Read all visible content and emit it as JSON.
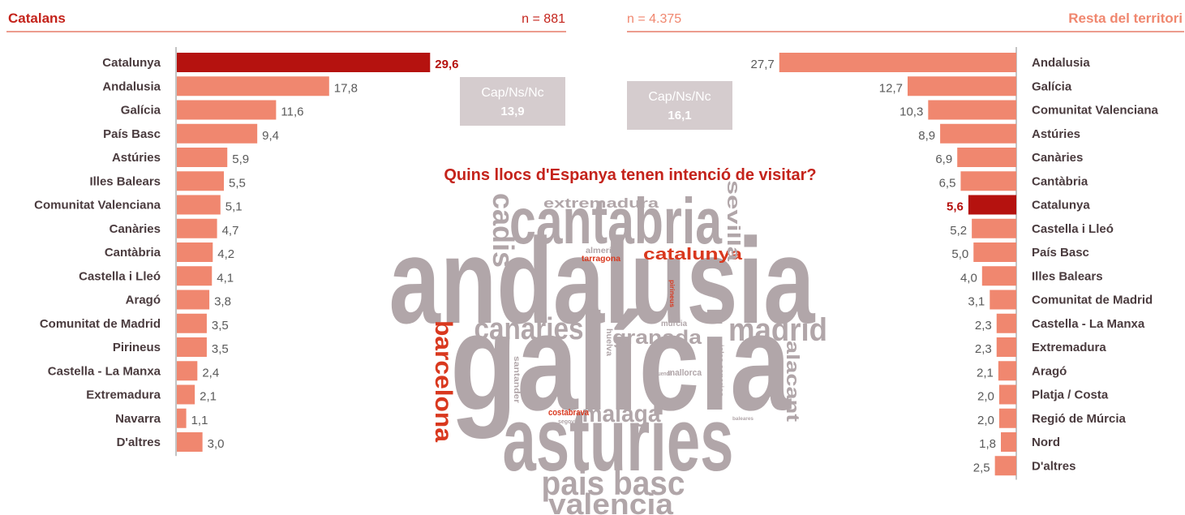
{
  "chart_data": [
    {
      "type": "hbar",
      "title": "Catalans",
      "subtitle": "n = 881",
      "categories": [
        "Catalunya",
        "Andalusia",
        "Galícia",
        "País Basc",
        "Astúries",
        "Illes Balears",
        "Comunitat Valenciana",
        "Canàries",
        "Cantàbria",
        "Castella i Lleó",
        "Aragó",
        "Comunitat de Madrid",
        "Pirineus",
        "Castella - La Manxa",
        "Extremadura",
        "Navarra",
        "D'altres"
      ],
      "values": [
        29.6,
        17.8,
        11.6,
        9.4,
        5.9,
        5.5,
        5.1,
        4.7,
        4.2,
        4.1,
        3.8,
        3.5,
        3.5,
        2.4,
        2.1,
        1.1,
        3.0
      ],
      "value_labels": [
        "29,6",
        "17,8",
        "11,6",
        "9,4",
        "5,9",
        "5,5",
        "5,1",
        "4,7",
        "4,2",
        "4,1",
        "3,8",
        "3,5",
        "3,5",
        "2,4",
        "2,1",
        "1,1",
        "3,0"
      ],
      "colors": [
        "#b5120f",
        "#f0876f",
        "#f0876f",
        "#f0876f",
        "#f0876f",
        "#f0876f",
        "#f0876f",
        "#f0876f",
        "#f0876f",
        "#f0876f",
        "#f0876f",
        "#f0876f",
        "#f0876f",
        "#f0876f",
        "#f0876f",
        "#f0876f",
        "#f0876f"
      ],
      "title_color": "#c4231b",
      "annotation": {
        "label": "Cap/Ns/Nc",
        "value": 13.9,
        "value_label": "13,9"
      }
    },
    {
      "type": "hbar",
      "title": "Resta del territori",
      "subtitle": "n = 4.375",
      "categories": [
        "Andalusia",
        "Galícia",
        "Comunitat Valenciana",
        "Astúries",
        "Canàries",
        "Cantàbria",
        "Catalunya",
        "Castella i Lleó",
        "País Basc",
        "Illes Balears",
        "Comunitat de Madrid",
        "Castella - La Manxa",
        "Extremadura",
        "Aragó",
        "Platja / Costa",
        "Regió de Múrcia",
        "Nord",
        "D'altres"
      ],
      "values": [
        27.7,
        12.7,
        10.3,
        8.9,
        6.9,
        6.5,
        5.6,
        5.2,
        5.0,
        4.0,
        3.1,
        2.3,
        2.3,
        2.1,
        2.0,
        2.0,
        1.8,
        2.5
      ],
      "value_labels": [
        "27,7",
        "12,7",
        "10,3",
        "8,9",
        "6,9",
        "6,5",
        "5,6",
        "5,2",
        "5,0",
        "4,0",
        "3,1",
        "2,3",
        "2,3",
        "2,1",
        "2,0",
        "2,0",
        "1,8",
        "2,5"
      ],
      "colors": [
        "#f0876f",
        "#f0876f",
        "#f0876f",
        "#f0876f",
        "#f0876f",
        "#f0876f",
        "#b5120f",
        "#f0876f",
        "#f0876f",
        "#f0876f",
        "#f0876f",
        "#f0876f",
        "#f0876f",
        "#f0876f",
        "#f0876f",
        "#f0876f",
        "#f0876f",
        "#f0876f"
      ],
      "title_color": "#f0876f",
      "annotation": {
        "label": "Cap/Ns/Nc",
        "value": 16.1,
        "value_label": "16,1"
      }
    }
  ],
  "wordcloud": {
    "title": "Quins llocs d'Espanya tenen intenció de visitar?",
    "words": [
      {
        "text": "andalusia",
        "color": "#b1a6a9"
      },
      {
        "text": "galícia",
        "color": "#b1a6a9"
      },
      {
        "text": "asturies",
        "color": "#b1a6a9"
      },
      {
        "text": "cantabria",
        "color": "#b1a6a9"
      },
      {
        "text": "pais basc",
        "color": "#b1a6a9"
      },
      {
        "text": "valencia",
        "color": "#b1a6a9"
      },
      {
        "text": "canaries",
        "color": "#b1a6a9"
      },
      {
        "text": "madrid",
        "color": "#b1a6a9"
      },
      {
        "text": "malaga",
        "color": "#b1a6a9"
      },
      {
        "text": "granada",
        "color": "#b1a6a9"
      },
      {
        "text": "catalunya",
        "color": "#d9381e"
      },
      {
        "text": "extremadura",
        "color": "#b1a6a9"
      },
      {
        "text": "barcelona",
        "color": "#d9381e"
      },
      {
        "text": "cadis",
        "color": "#b1a6a9"
      },
      {
        "text": "sevilla",
        "color": "#b1a6a9"
      },
      {
        "text": "alacant",
        "color": "#b1a6a9"
      },
      {
        "text": "almeria",
        "color": "#b1a6a9"
      },
      {
        "text": "tarragona",
        "color": "#d9381e"
      },
      {
        "text": "pirineus",
        "color": "#d9381e"
      },
      {
        "text": "murcia",
        "color": "#b1a6a9"
      },
      {
        "text": "huelva",
        "color": "#b1a6a9"
      },
      {
        "text": "santander",
        "color": "#b1a6a9"
      },
      {
        "text": "isles canaries",
        "color": "#b1a6a9"
      },
      {
        "text": "cuenca",
        "color": "#b1a6a9"
      },
      {
        "text": "mallorca",
        "color": "#b1a6a9"
      },
      {
        "text": "costabrava",
        "color": "#d9381e"
      },
      {
        "text": "segovia",
        "color": "#b1a6a9"
      },
      {
        "text": "baleares",
        "color": "#b1a6a9"
      }
    ]
  }
}
